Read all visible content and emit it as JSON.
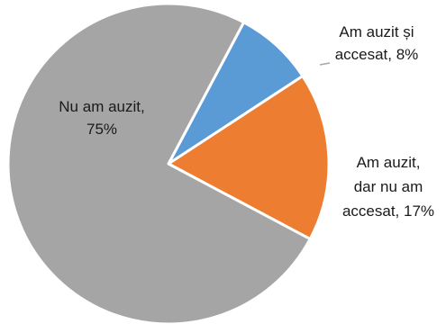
{
  "chart_data": {
    "type": "pie",
    "slices": [
      {
        "name": "Am auzit și accesat",
        "value": 8,
        "color": "#5B9BD5",
        "label_lines": [
          "Am auzit și",
          "accesat, 8%"
        ]
      },
      {
        "name": "Am auzit, dar nu am accesat",
        "value": 17,
        "color": "#ED7D31",
        "label_lines": [
          "Am auzit,",
          "dar nu am",
          "accesat, 17%"
        ]
      },
      {
        "name": "Nu am auzit",
        "value": 75,
        "color": "#A5A5A5",
        "label_lines": [
          "Nu am auzit,",
          "75%"
        ]
      }
    ],
    "start_angle_deg": 0,
    "direction": "clockwise",
    "legend": "none"
  }
}
